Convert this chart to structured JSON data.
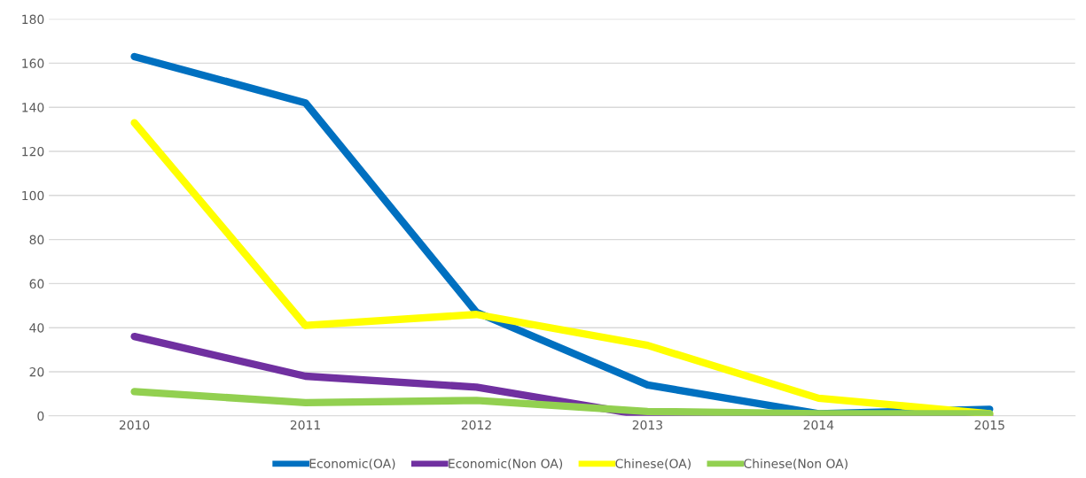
{
  "chart_data": {
    "type": "line",
    "categories": [
      "2010",
      "2011",
      "2012",
      "2013",
      "2014",
      "2015"
    ],
    "series": [
      {
        "name": "Economic(OA)",
        "color": "#0070c0",
        "values": [
          163,
          142,
          47,
          14,
          1,
          3
        ]
      },
      {
        "name": "Economic(Non OA)",
        "color": "#7030a0",
        "values": [
          36,
          18,
          13,
          0,
          0,
          0
        ]
      },
      {
        "name": "Chinese(OA)",
        "color": "#ffff00",
        "values": [
          133,
          41,
          46,
          32,
          8,
          1
        ]
      },
      {
        "name": "Chinese(Non OA)",
        "color": "#92d050",
        "values": [
          11,
          6,
          7,
          2,
          1,
          1
        ]
      }
    ],
    "ylim": [
      0,
      180
    ],
    "yticks": [
      0,
      20,
      40,
      60,
      80,
      100,
      120,
      140,
      160,
      180
    ],
    "grid": "y",
    "legend": "bottom",
    "marker": "none",
    "line_style": "solid"
  }
}
